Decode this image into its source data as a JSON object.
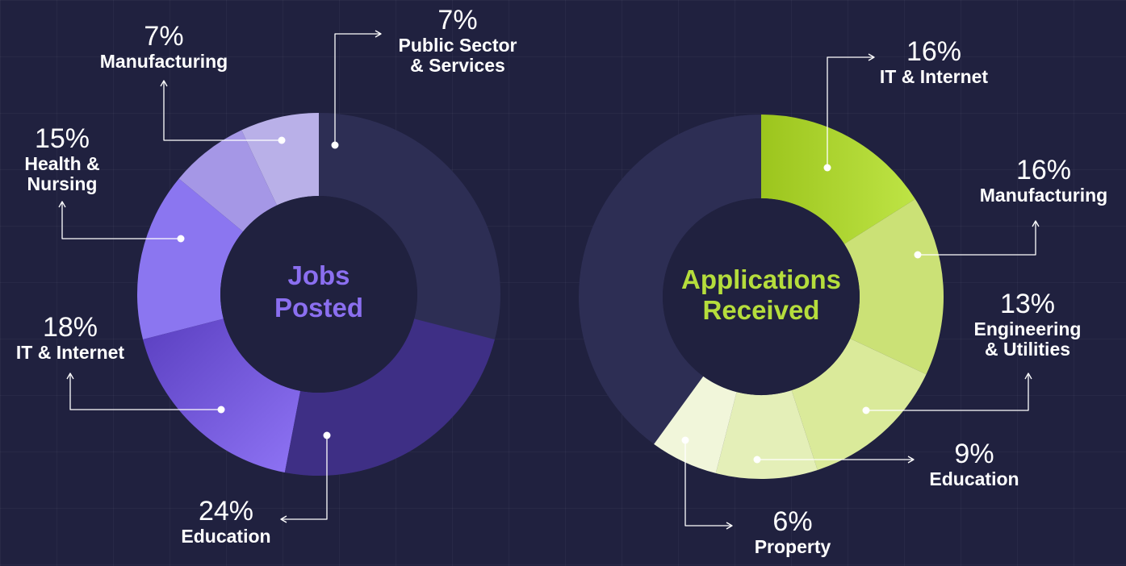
{
  "chart_data": [
    {
      "type": "pie",
      "title": "Jobs Posted",
      "title_lines": [
        "Jobs",
        "Posted"
      ],
      "accent": "#8b6ff0",
      "remainder_color": "#2d2e54",
      "slices": [
        {
          "label": "Public Sector & Services",
          "label_lines": [
            "Public Sector",
            "& Services"
          ],
          "value": 7,
          "pct_text": "7%",
          "color": "#b9b0e8"
        },
        {
          "label": "Manufacturing",
          "label_lines": [
            "Manufacturing"
          ],
          "value": 7,
          "pct_text": "7%",
          "color": "#a597e6"
        },
        {
          "label": "Health & Nursing",
          "label_lines": [
            "Health &",
            "Nursing"
          ],
          "value": 15,
          "pct_text": "15%",
          "color": "#8b76f0"
        },
        {
          "label": "IT & Internet",
          "label_lines": [
            "IT & Internet"
          ],
          "value": 18,
          "pct_text": "18%",
          "color": "#6c51d4"
        },
        {
          "label": "Education",
          "label_lines": [
            "Education"
          ],
          "value": 24,
          "pct_text": "24%",
          "color": "#3e2f85"
        }
      ]
    },
    {
      "type": "pie",
      "title": "Applications Received",
      "title_lines": [
        "Applications",
        "Received"
      ],
      "accent": "#b5dd3c",
      "remainder_color": "#2d2e54",
      "slices": [
        {
          "label": "IT & Internet",
          "label_lines": [
            "IT & Internet"
          ],
          "value": 16,
          "pct_text": "16%",
          "color": "#acd333"
        },
        {
          "label": "Manufacturing",
          "label_lines": [
            "Manufacturing"
          ],
          "value": 16,
          "pct_text": "16%",
          "color": "#cbe176"
        },
        {
          "label": "Engineering & Utilities",
          "label_lines": [
            "Engineering",
            "& Utilities"
          ],
          "value": 13,
          "pct_text": "13%",
          "color": "#daea9a"
        },
        {
          "label": "Education",
          "label_lines": [
            "Education"
          ],
          "value": 9,
          "pct_text": "9%",
          "color": "#e4efb8"
        },
        {
          "label": "Property",
          "label_lines": [
            "Property"
          ],
          "value": 6,
          "pct_text": "6%",
          "color": "#f1f6da"
        }
      ]
    }
  ]
}
